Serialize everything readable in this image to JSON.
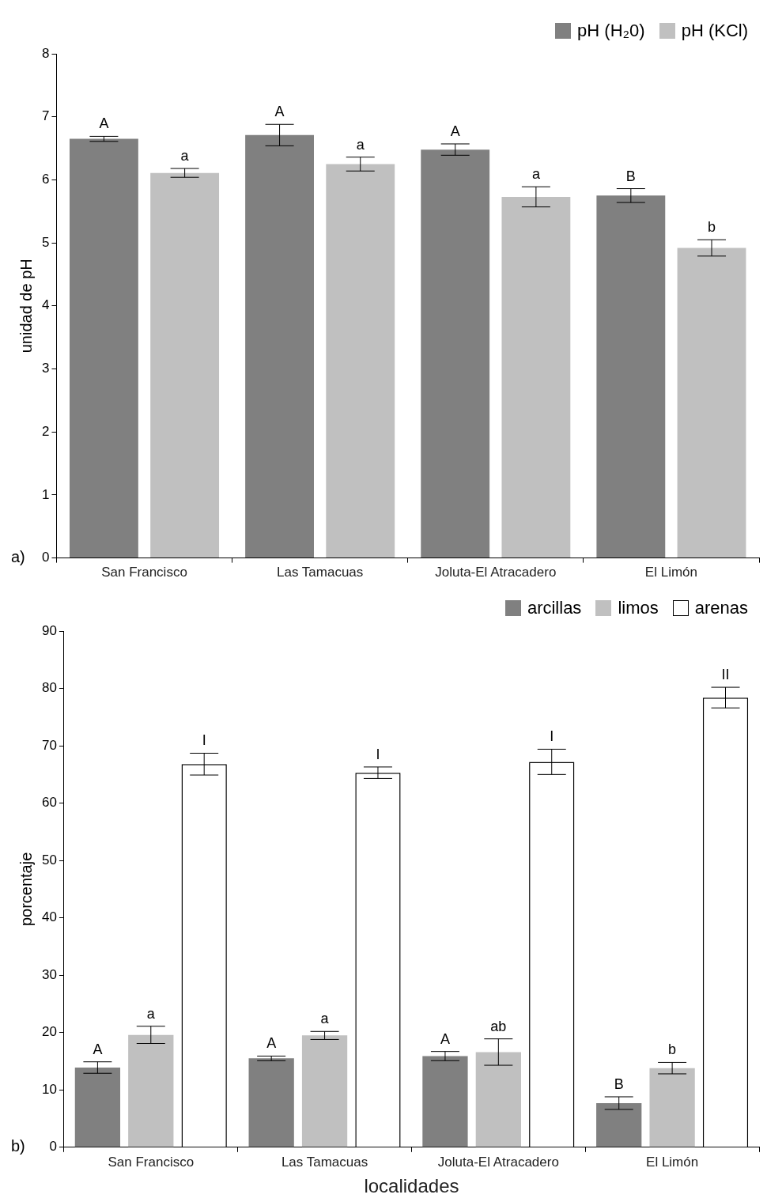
{
  "chart_data": [
    {
      "type": "bar",
      "ylabel": "unidad de pH",
      "categories": [
        "San Francisco",
        "Las Tamacuas",
        "Joluta-El Atracadero",
        "El Limón"
      ],
      "series": [
        {
          "name": "pH (H₂0)",
          "color": "#808080",
          "values": [
            6.65,
            6.71,
            6.48,
            5.75
          ],
          "errors": [
            0.04,
            0.17,
            0.09,
            0.11
          ],
          "value_labels": [
            "A",
            "A",
            "A",
            "B"
          ]
        },
        {
          "name": "pH (KCl)",
          "color": "#c0c0c0",
          "values": [
            6.11,
            6.25,
            5.73,
            4.92
          ],
          "errors": [
            0.07,
            0.11,
            0.16,
            0.13
          ],
          "value_labels": [
            "a",
            "a",
            "a",
            "b"
          ]
        }
      ],
      "ylim": [
        0,
        8
      ],
      "yticks": [
        0,
        1,
        2,
        3,
        4,
        5,
        6,
        7,
        8
      ],
      "grid": false,
      "legend": "top right",
      "annotations": [
        "a)"
      ]
    },
    {
      "type": "bar",
      "xlabel": "localidades",
      "ylabel": "porcentaje",
      "categories": [
        "San Francisco",
        "Las Tamacuas",
        "Joluta-El Atracadero",
        "El Limón"
      ],
      "series": [
        {
          "name": "arcillas",
          "color": "#808080",
          "values": [
            13.9,
            15.5,
            15.9,
            7.7
          ],
          "errors": [
            1.0,
            0.4,
            0.8,
            1.1
          ],
          "value_labels": [
            "A",
            "A",
            "A",
            "B"
          ]
        },
        {
          "name": "limos",
          "color": "#c0c0c0",
          "values": [
            19.6,
            19.5,
            16.6,
            13.8
          ],
          "errors": [
            1.5,
            0.7,
            2.3,
            1.0
          ],
          "value_labels": [
            "a",
            "a",
            "ab",
            "b"
          ]
        },
        {
          "name": "arenas",
          "color": "#ffffff",
          "values": [
            66.8,
            65.3,
            67.2,
            78.4
          ],
          "errors": [
            1.9,
            1.0,
            2.2,
            1.8
          ],
          "value_labels": [
            "I",
            "I",
            "I",
            "II"
          ]
        }
      ],
      "ylim": [
        0,
        90
      ],
      "yticks": [
        0,
        10,
        20,
        30,
        40,
        50,
        60,
        70,
        80,
        90
      ],
      "grid": false,
      "legend": "top right",
      "annotations": [
        "b)"
      ]
    }
  ]
}
